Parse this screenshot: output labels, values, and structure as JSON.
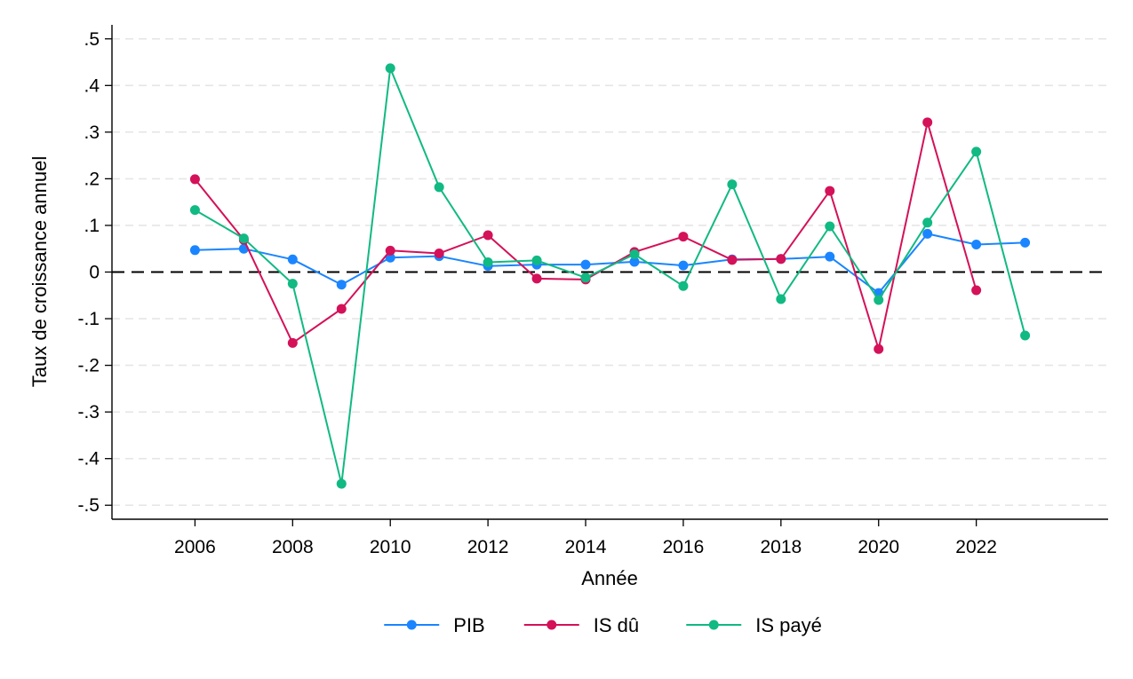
{
  "chart_data": {
    "type": "line",
    "title": "",
    "xlabel": "Année",
    "ylabel": "Taux de croissance annuel",
    "xlim": [
      2004.3,
      2024.7
    ],
    "ylim": [
      -0.53,
      0.53
    ],
    "x_ticks": [
      2006,
      2008,
      2010,
      2012,
      2014,
      2016,
      2018,
      2020,
      2022
    ],
    "x_tick_labels": [
      "2006",
      "2008",
      "2010",
      "2012",
      "2014",
      "2016",
      "2018",
      "2020",
      "2022"
    ],
    "y_ticks": [
      0.5,
      0.4,
      0.3,
      0.2,
      0.1,
      0,
      -0.1,
      -0.2,
      -0.3,
      -0.4,
      -0.5
    ],
    "y_tick_labels": [
      ".5",
      ".4",
      ".3",
      ".2",
      ".1",
      "0",
      "-.1",
      "-.2",
      "-.3",
      "-.4",
      "-.5"
    ],
    "grid": true,
    "reference_line_y": 0,
    "legend_position": "bottom",
    "series": [
      {
        "name": "PIB",
        "color": "#1a85ff",
        "x": [
          2006,
          2007,
          2008,
          2009,
          2010,
          2011,
          2012,
          2013,
          2014,
          2015,
          2016,
          2017,
          2018,
          2019,
          2020,
          2021,
          2022,
          2023
        ],
        "values": [
          0.047,
          0.05,
          0.027,
          -0.027,
          0.031,
          0.034,
          0.013,
          0.016,
          0.016,
          0.022,
          0.014,
          0.027,
          0.028,
          0.033,
          -0.045,
          0.082,
          0.059,
          0.063
        ]
      },
      {
        "name": "IS dû",
        "color": "#d41159",
        "x": [
          2006,
          2007,
          2008,
          2009,
          2010,
          2011,
          2012,
          2013,
          2014,
          2015,
          2016,
          2017,
          2018,
          2019,
          2020,
          2021,
          2022
        ],
        "values": [
          0.199,
          0.069,
          -0.152,
          -0.079,
          0.046,
          0.04,
          0.079,
          -0.014,
          -0.016,
          0.043,
          0.076,
          0.026,
          0.028,
          0.174,
          -0.165,
          0.321,
          -0.039
        ]
      },
      {
        "name": "IS payé",
        "color": "#11b983",
        "x": [
          2006,
          2007,
          2008,
          2009,
          2010,
          2011,
          2012,
          2013,
          2014,
          2015,
          2016,
          2017,
          2018,
          2019,
          2020,
          2021,
          2022,
          2023
        ],
        "values": [
          0.133,
          0.072,
          -0.025,
          -0.454,
          0.437,
          0.182,
          0.021,
          0.025,
          -0.012,
          0.038,
          -0.03,
          0.188,
          -0.058,
          0.098,
          -0.06,
          0.106,
          0.258,
          -0.136
        ]
      }
    ]
  }
}
